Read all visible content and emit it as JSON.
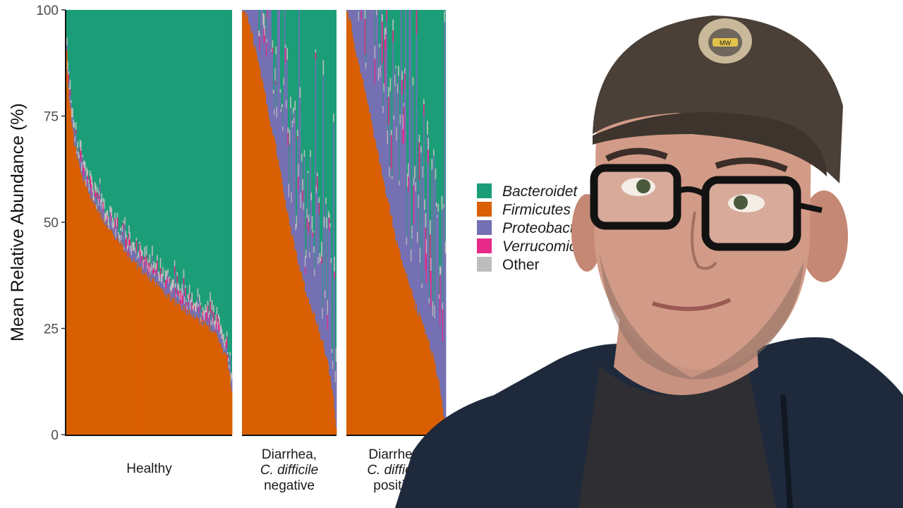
{
  "chart_data": {
    "type": "bar",
    "stacked": true,
    "ylabel": "Mean Relative Abundance (%)",
    "ylim": [
      0,
      100
    ],
    "yticks": [
      "0",
      "25",
      "50",
      "75",
      "100"
    ],
    "grid": false,
    "legend_position": "right",
    "legend": [
      {
        "label": "Bacteroidetes",
        "color": "#1b9e77",
        "italic": true
      },
      {
        "label": "Firmicutes",
        "color": "#d95f02",
        "italic": true
      },
      {
        "label": "Proteobacteria",
        "color": "#7570b3",
        "italic": true
      },
      {
        "label": "Verrucomicrobia",
        "color": "#e7298a",
        "italic": true
      },
      {
        "label": "Other",
        "color": "#bdbdbd",
        "italic": false
      }
    ],
    "legend_visible_text": [
      "Bacteroidet",
      "Firmicutes",
      "Proteobacte",
      "Verrucomic",
      "Other"
    ],
    "panels": [
      {
        "facet_lines": [
          "Healthy"
        ],
        "facet_italic": [
          false
        ],
        "n_samples": 200,
        "firmicutes_profile": {
          "x": [
            0,
            0.01,
            0.05,
            0.1,
            0.2,
            0.3,
            0.4,
            0.5,
            0.6,
            0.7,
            0.8,
            0.9,
            0.97,
            1
          ],
          "y": [
            93,
            82,
            68,
            60,
            52,
            46,
            41,
            37,
            33,
            30,
            27,
            24,
            18,
            10
          ]
        },
        "proteobacteria_mean": 1.5,
        "verrucomicrobia_mean": 0.6,
        "other_mean": 1.2
      },
      {
        "facet_lines": [
          "Diarrhea,",
          "C. difficile",
          "negative"
        ],
        "facet_italic": [
          false,
          true,
          false
        ],
        "n_samples": 110,
        "firmicutes_profile": {
          "x": [
            0,
            0.04,
            0.1,
            0.2,
            0.3,
            0.4,
            0.5,
            0.6,
            0.7,
            0.8,
            0.9,
            0.96,
            1
          ],
          "y": [
            100,
            99,
            95,
            85,
            74,
            63,
            50,
            40,
            32,
            26,
            18,
            10,
            1
          ]
        },
        "proteobacteria_mean": 18,
        "verrucomicrobia_mean": 0.8,
        "other_mean": 1.8
      },
      {
        "facet_lines": [
          "Diarrhea,",
          "C. difficile",
          "positive"
        ],
        "facet_italic": [
          false,
          true,
          false
        ],
        "n_samples": 110,
        "firmicutes_profile": {
          "x": [
            0,
            0.05,
            0.1,
            0.2,
            0.3,
            0.4,
            0.5,
            0.6,
            0.7,
            0.8,
            0.9,
            0.96,
            1
          ],
          "y": [
            100,
            96,
            90,
            80,
            68,
            57,
            46,
            38,
            30,
            24,
            16,
            8,
            2
          ]
        },
        "proteobacteria_mean": 25,
        "verrucomicrobia_mean": 2.5,
        "other_mean": 1.8
      }
    ]
  },
  "colors": {
    "bacteroidetes": "#1b9e77",
    "firmicutes": "#d95f02",
    "proteobacteria": "#7570b3",
    "verrucomicrobia": "#e7298a",
    "other": "#bdbdbd"
  },
  "overlay": {
    "description_icon": "presenter-webcam-cutout",
    "cap_badge_text": "MW"
  }
}
